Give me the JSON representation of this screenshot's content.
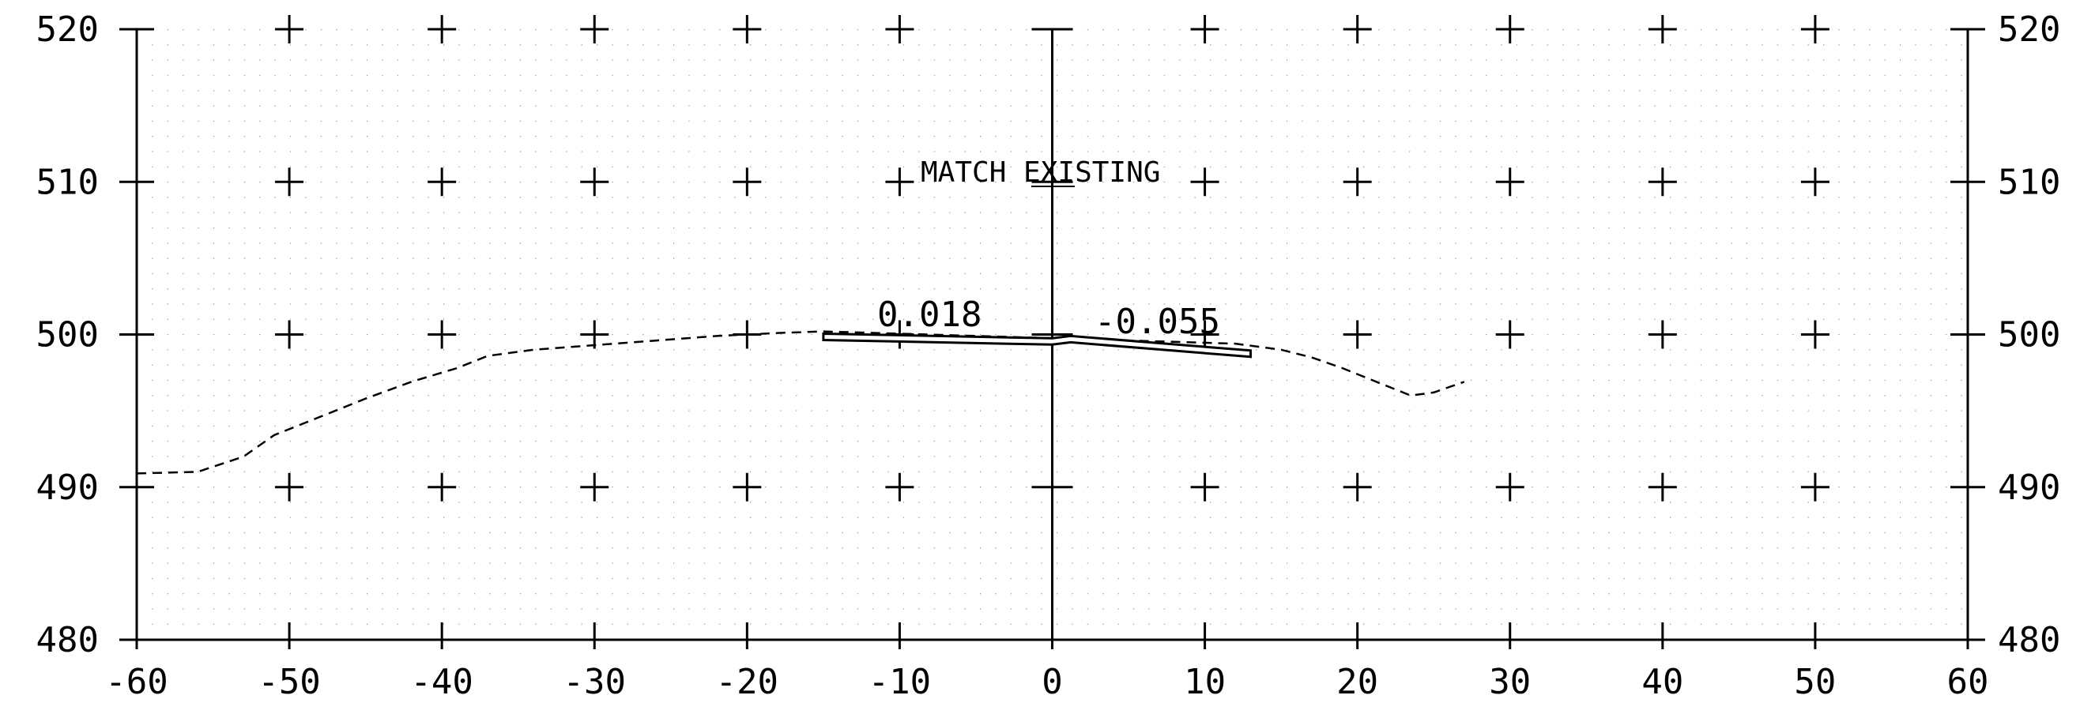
{
  "x_ticks": [
    -60,
    -50,
    -40,
    -30,
    -20,
    -10,
    0,
    10,
    20,
    30,
    40,
    50,
    60
  ],
  "y_ticks": [
    480,
    490,
    500,
    510,
    520
  ],
  "x_tick_labels": [
    "-60",
    "-50",
    "-40",
    "-30",
    "-20",
    "-10",
    "0",
    "10",
    "20",
    "30",
    "40",
    "50",
    "60"
  ],
  "y_tick_labels": [
    "480",
    "490",
    "500",
    "510",
    "520"
  ],
  "xlim": [
    -60,
    60
  ],
  "ylim": [
    480,
    520
  ],
  "annotation": "MATCH EXISTING",
  "slope_left": "0.018",
  "slope_right": "-0.055",
  "existing_ground": [
    [
      -60,
      490.9
    ],
    [
      -56,
      491.0
    ],
    [
      -53,
      492.0
    ],
    [
      -51,
      493.4
    ],
    [
      -48,
      494.6
    ],
    [
      -45,
      495.8
    ],
    [
      -42,
      496.9
    ],
    [
      -39,
      497.8
    ],
    [
      -37,
      498.6
    ],
    [
      -34,
      499.0
    ],
    [
      -30,
      499.3
    ],
    [
      -26,
      499.6
    ],
    [
      -22,
      499.9
    ],
    [
      -18,
      500.1
    ],
    [
      -15,
      500.2
    ],
    [
      12,
      499.4
    ],
    [
      15,
      499.0
    ],
    [
      17,
      498.5
    ],
    [
      19,
      497.8
    ],
    [
      21,
      497.0
    ],
    [
      23.5,
      496.0
    ],
    [
      25,
      496.2
    ],
    [
      27,
      496.9
    ]
  ],
  "proposed_section": [
    [
      -15,
      500.05
    ],
    [
      0,
      499.75
    ],
    [
      1.2,
      499.9
    ],
    [
      13,
      498.95
    ]
  ],
  "colors": {
    "line": "#000000",
    "grid_dot": "#888888",
    "background": "#ffffff"
  }
}
